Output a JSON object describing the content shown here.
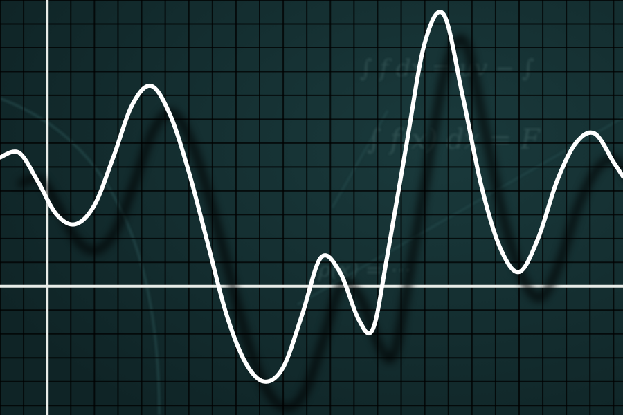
{
  "colors": {
    "background": "#0f2426",
    "background_glow": "#1a3a3c",
    "grid": "#000000",
    "axis": "#e8ece8",
    "curve": "#ffffff",
    "curve_shadow": "#000000",
    "backdrop_text": "#3f6262",
    "backdrop_lines": "#2f5a5c"
  },
  "backdrop_formulas": [
    "∫ f dx = uv − ∫",
    "∫ f(x) dx = F",
    "ρ(x) = ⋯"
  ],
  "chart_data": {
    "type": "line",
    "title": "",
    "xlabel": "",
    "ylabel": "",
    "grid": true,
    "legend": "none",
    "xlim": [
      -1.0,
      12.2
    ],
    "ylim": [
      -2.7,
      6.0
    ],
    "series": [
      {
        "x": [
          -1.0,
          -0.6,
          -0.2,
          0.2,
          0.6,
          1.0,
          1.4,
          1.8,
          2.2,
          2.6,
          3.0,
          3.4,
          3.8,
          4.2,
          4.6,
          5.0,
          5.4,
          5.8,
          6.2,
          6.6,
          6.9,
          7.2,
          7.6,
          8.0,
          8.4,
          8.8,
          9.2,
          9.6,
          10.0,
          10.4,
          10.8,
          11.2,
          11.6,
          12.0,
          12.2
        ],
        "values": [
          2.7,
          2.8,
          2.2,
          1.5,
          1.3,
          1.7,
          2.7,
          3.8,
          4.2,
          3.6,
          2.4,
          0.9,
          -0.6,
          -1.6,
          -2.0,
          -1.7,
          -0.6,
          0.6,
          0.3,
          -0.7,
          -0.9,
          0.6,
          2.9,
          5.1,
          5.7,
          4.0,
          2.1,
          0.8,
          0.3,
          1.0,
          2.2,
          3.0,
          3.2,
          2.6,
          2.3
        ]
      }
    ]
  }
}
